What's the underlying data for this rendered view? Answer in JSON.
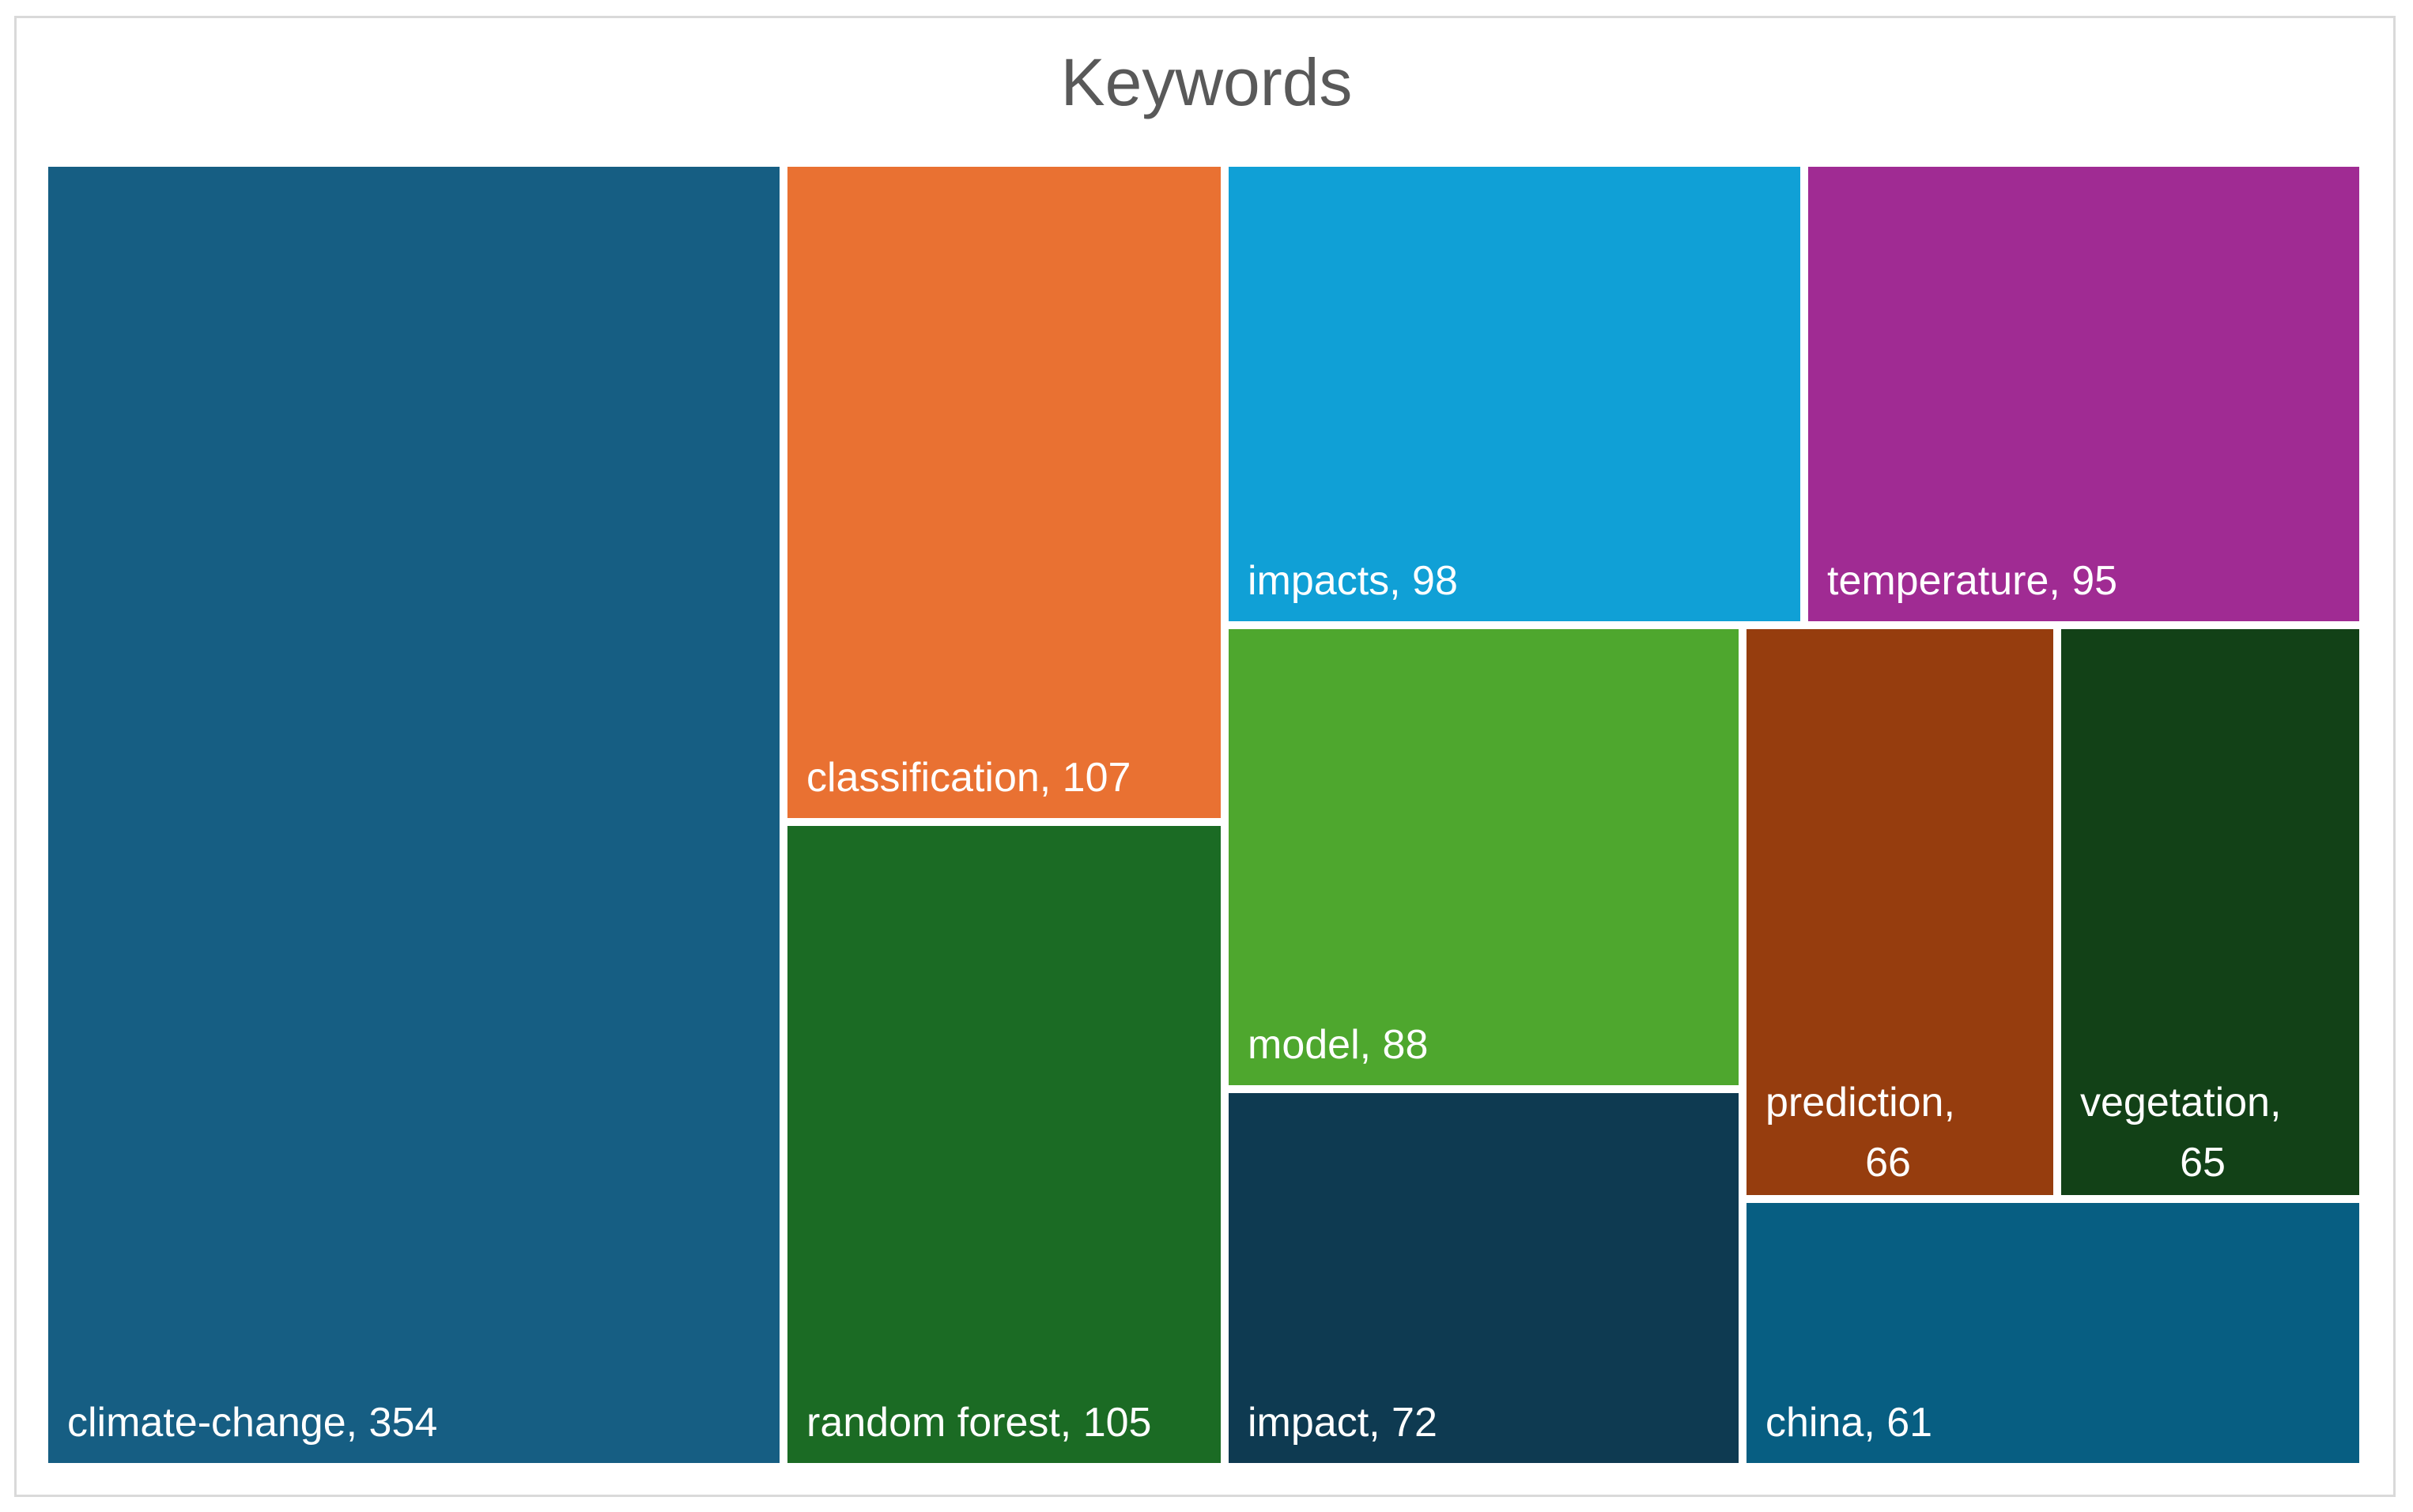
{
  "chart_data": {
    "type": "treemap",
    "title": "Keywords",
    "items": [
      {
        "name": "climate-change",
        "value": 354,
        "color": "#165E83",
        "label_lines": [
          "climate-change, 354"
        ]
      },
      {
        "name": "classification",
        "value": 107,
        "color": "#E97132",
        "label_lines": [
          "classification, 107"
        ]
      },
      {
        "name": "random forest",
        "value": 105,
        "color": "#1B6B24",
        "label_lines": [
          "random forest, 105"
        ]
      },
      {
        "name": "impacts",
        "value": 98,
        "color": "#10A0D6",
        "label_lines": [
          "impacts, 98"
        ]
      },
      {
        "name": "temperature",
        "value": 95,
        "color": "#A02B93",
        "label_lines": [
          "temperature, 95"
        ]
      },
      {
        "name": "model",
        "value": 88,
        "color": "#4EA72E",
        "label_lines": [
          "model, 88"
        ]
      },
      {
        "name": "impact",
        "value": 72,
        "color": "#0E3A51",
        "label_lines": [
          "impact, 72"
        ]
      },
      {
        "name": "prediction",
        "value": 66,
        "color": "#963D0E",
        "label_lines": [
          "prediction,",
          "66"
        ]
      },
      {
        "name": "vegetation",
        "value": 65,
        "color": "#124117",
        "label_lines": [
          "vegetation,",
          "65"
        ]
      },
      {
        "name": "china",
        "value": 61,
        "color": "#075E82",
        "label_lines": [
          "china, 61"
        ]
      }
    ]
  }
}
